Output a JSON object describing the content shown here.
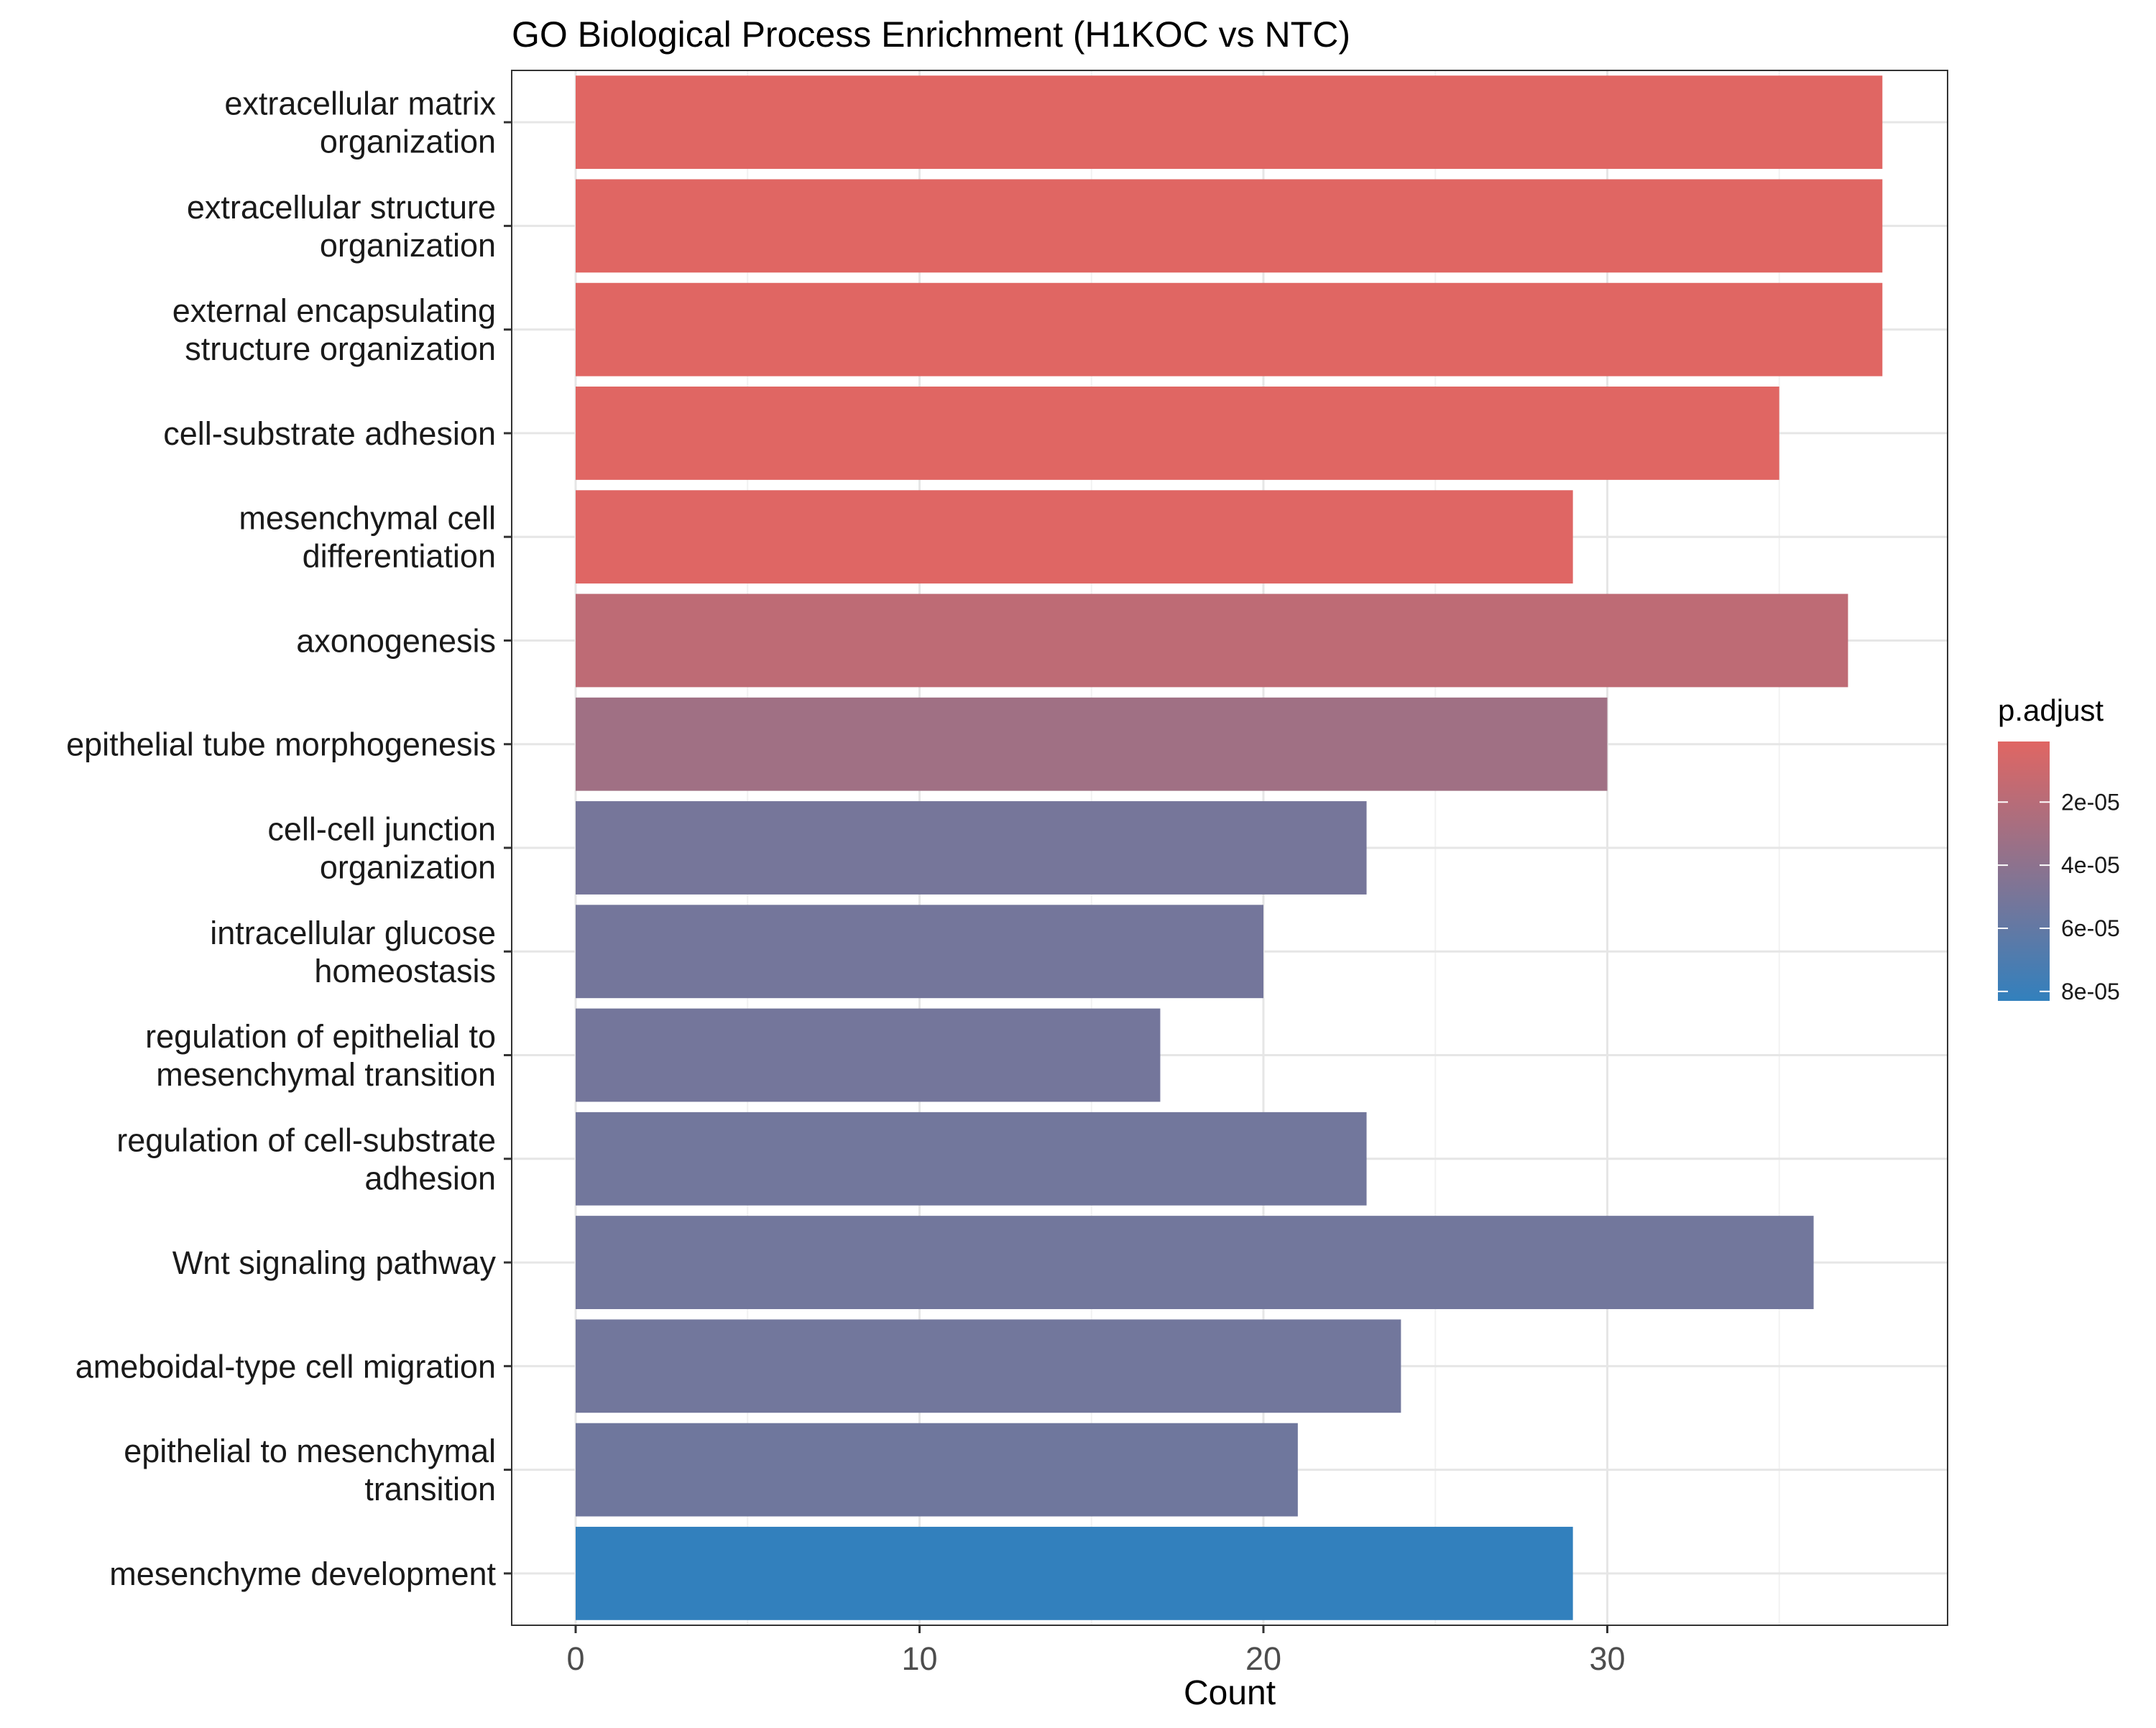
{
  "chart_data": {
    "type": "bar",
    "orientation": "horizontal",
    "title": "GO Biological Process Enrichment (H1KOC vs NTC)",
    "xlabel": "Count",
    "ylabel": "",
    "xlim": [
      0,
      40
    ],
    "x_ticks": [
      0,
      10,
      20,
      30
    ],
    "grid": true,
    "categories": [
      "extracellular matrix\norganization",
      "extracellular structure\norganization",
      "external encapsulating\nstructure organization",
      "cell-substrate adhesion",
      "mesenchymal cell\ndifferentiation",
      "axonogenesis",
      "epithelial tube morphogenesis",
      "cell-cell junction\norganization",
      "intracellular glucose\nhomeostasis",
      "regulation of epithelial to\nmesenchymal transition",
      "regulation of cell-substrate\nadhesion",
      "Wnt signaling pathway",
      "ameboidal-type cell migration",
      "epithelial to mesenchymal\ntransition",
      "mesenchyme development"
    ],
    "values": [
      38,
      38,
      38,
      35,
      29,
      37,
      30,
      23,
      20,
      17,
      23,
      36,
      24,
      21,
      29
    ],
    "p_adjust": [
      8e-07,
      8e-07,
      8e-07,
      1e-06,
      1.5e-06,
      1.7e-05,
      3.1e-05,
      5.1e-05,
      5.2e-05,
      5.2e-05,
      5.3e-05,
      5.3e-05,
      5.3e-05,
      5.4e-05,
      8.3e-05
    ],
    "color_scale": {
      "title": "p.adjust",
      "low_color": "#e06663",
      "high_color": "#3280bd",
      "domain": [
        8e-07,
        8.3e-05
      ],
      "ticks": [
        2e-05,
        4e-05,
        6e-05,
        8e-05
      ],
      "tick_labels": [
        "2e-05",
        "4e-05",
        "6e-05",
        "8e-05"
      ]
    },
    "legend_position": "right"
  }
}
